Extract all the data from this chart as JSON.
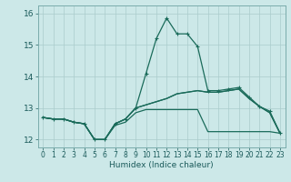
{
  "title": "",
  "xlabel": "Humidex (Indice chaleur)",
  "bg_color": "#cce8e8",
  "grid_color": "#aacccc",
  "line_color": "#1a6b5a",
  "xlim": [
    -0.5,
    23.5
  ],
  "ylim": [
    11.75,
    16.25
  ],
  "yticks": [
    12,
    13,
    14,
    15,
    16
  ],
  "xticks": [
    0,
    1,
    2,
    3,
    4,
    5,
    6,
    7,
    8,
    9,
    10,
    11,
    12,
    13,
    14,
    15,
    16,
    17,
    18,
    19,
    20,
    21,
    22,
    23
  ],
  "line1_x": [
    0,
    1,
    2,
    3,
    4,
    5,
    6,
    7,
    8,
    9,
    10,
    11,
    12,
    13,
    14,
    15,
    16,
    17,
    18,
    19,
    20,
    21,
    22,
    23
  ],
  "line1_y": [
    12.7,
    12.65,
    12.65,
    12.55,
    12.5,
    12.0,
    12.0,
    12.45,
    12.55,
    12.85,
    12.95,
    12.95,
    12.95,
    12.95,
    12.95,
    12.95,
    12.25,
    12.25,
    12.25,
    12.25,
    12.25,
    12.25,
    12.25,
    12.2
  ],
  "line2_x": [
    0,
    1,
    2,
    3,
    4,
    5,
    6,
    7,
    8,
    9,
    10,
    11,
    12,
    13,
    14,
    15,
    16,
    17,
    18,
    19,
    20,
    21,
    22,
    23
  ],
  "line2_y": [
    12.7,
    12.65,
    12.65,
    12.55,
    12.5,
    12.0,
    12.0,
    12.5,
    12.65,
    13.0,
    13.1,
    13.2,
    13.3,
    13.45,
    13.5,
    13.55,
    13.5,
    13.5,
    13.55,
    13.6,
    13.3,
    13.05,
    12.85,
    12.2
  ],
  "line3_x": [
    0,
    1,
    2,
    3,
    4,
    5,
    6,
    7,
    8,
    9,
    10,
    11,
    12,
    13,
    14,
    15,
    16,
    17,
    18,
    19,
    20,
    21,
    22,
    23
  ],
  "line3_y": [
    12.7,
    12.65,
    12.65,
    12.55,
    12.5,
    12.0,
    12.0,
    12.5,
    12.65,
    13.0,
    14.1,
    15.2,
    15.85,
    15.35,
    15.35,
    14.95,
    13.55,
    13.55,
    13.6,
    13.65,
    13.35,
    13.05,
    12.9,
    12.2
  ],
  "line4_x": [
    0,
    1,
    2,
    3,
    4,
    5,
    6,
    7,
    8,
    9,
    10,
    11,
    12,
    13,
    14,
    15,
    16,
    17,
    18,
    19,
    20,
    21,
    22,
    23
  ],
  "line4_y": [
    12.7,
    12.65,
    12.65,
    12.55,
    12.5,
    12.0,
    12.0,
    12.5,
    12.65,
    13.0,
    13.1,
    13.2,
    13.3,
    13.45,
    13.5,
    13.55,
    13.5,
    13.5,
    13.55,
    13.6,
    13.3,
    13.05,
    12.85,
    12.2
  ]
}
